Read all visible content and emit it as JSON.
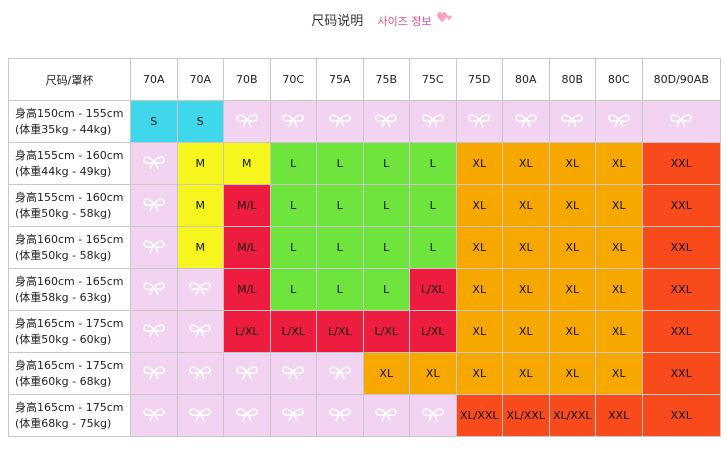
{
  "header": {
    "title": "尺码说明",
    "subtitle": "사이즈 정보"
  },
  "table": {
    "columns": [
      "尺码/罩杯",
      "70A",
      "70A",
      "70B",
      "70C",
      "75A",
      "75B",
      "75C",
      "75D",
      "80A",
      "80B",
      "80C",
      "80D/90AB"
    ],
    "rows": [
      {
        "height": "身高150cm - 155cm",
        "weight": "(体重35kg - 44kg)",
        "cells": [
          {
            "text": "S",
            "fill": "#3fd7ec"
          },
          {
            "text": "S",
            "fill": "#3fd7ec"
          },
          null,
          null,
          null,
          null,
          null,
          null,
          null,
          null,
          null,
          null
        ]
      },
      {
        "height": "身高155cm - 160cm",
        "weight": "(体重44kg - 49kg)",
        "cells": [
          null,
          {
            "text": "M",
            "fill": "#f7f51e"
          },
          {
            "text": "M",
            "fill": "#f7f51e"
          },
          {
            "text": "L",
            "fill": "#6ee43c"
          },
          {
            "text": "L",
            "fill": "#6ee43c"
          },
          {
            "text": "L",
            "fill": "#6ee43c"
          },
          {
            "text": "L",
            "fill": "#6ee43c"
          },
          {
            "text": "XL",
            "fill": "#f7a800"
          },
          {
            "text": "XL",
            "fill": "#f7a800"
          },
          {
            "text": "XL",
            "fill": "#f7a800"
          },
          {
            "text": "XL",
            "fill": "#f7a800"
          },
          {
            "text": "XXL",
            "fill": "#f94a1c"
          }
        ]
      },
      {
        "height": "身高155cm - 160cm",
        "weight": "(体重50kg - 58kg)",
        "cells": [
          null,
          {
            "text": "M",
            "fill": "#f7f51e"
          },
          {
            "text": "M/L",
            "fill": "#ee1c3f"
          },
          {
            "text": "L",
            "fill": "#6ee43c"
          },
          {
            "text": "L",
            "fill": "#6ee43c"
          },
          {
            "text": "L",
            "fill": "#6ee43c"
          },
          {
            "text": "L",
            "fill": "#6ee43c"
          },
          {
            "text": "XL",
            "fill": "#f7a800"
          },
          {
            "text": "XL",
            "fill": "#f7a800"
          },
          {
            "text": "XL",
            "fill": "#f7a800"
          },
          {
            "text": "XL",
            "fill": "#f7a800"
          },
          {
            "text": "XXL",
            "fill": "#f94a1c"
          }
        ]
      },
      {
        "height": "身高160cm - 165cm",
        "weight": "(体重50kg - 58kg)",
        "cells": [
          null,
          {
            "text": "M",
            "fill": "#f7f51e"
          },
          {
            "text": "M/L",
            "fill": "#ee1c3f"
          },
          {
            "text": "L",
            "fill": "#6ee43c"
          },
          {
            "text": "L",
            "fill": "#6ee43c"
          },
          {
            "text": "L",
            "fill": "#6ee43c"
          },
          {
            "text": "L",
            "fill": "#6ee43c"
          },
          {
            "text": "XL",
            "fill": "#f7a800"
          },
          {
            "text": "XL",
            "fill": "#f7a800"
          },
          {
            "text": "XL",
            "fill": "#f7a800"
          },
          {
            "text": "XL",
            "fill": "#f7a800"
          },
          {
            "text": "XXL",
            "fill": "#f94a1c"
          }
        ]
      },
      {
        "height": "身高160cm - 165cm",
        "weight": "(体重58kg - 63kg)",
        "cells": [
          null,
          null,
          {
            "text": "M/L",
            "fill": "#ee1c3f"
          },
          {
            "text": "L",
            "fill": "#6ee43c"
          },
          {
            "text": "L",
            "fill": "#6ee43c"
          },
          {
            "text": "L",
            "fill": "#6ee43c"
          },
          {
            "text": "L/XL",
            "fill": "#ee1c3f"
          },
          {
            "text": "XL",
            "fill": "#f7a800"
          },
          {
            "text": "XL",
            "fill": "#f7a800"
          },
          {
            "text": "XL",
            "fill": "#f7a800"
          },
          {
            "text": "XL",
            "fill": "#f7a800"
          },
          {
            "text": "XXL",
            "fill": "#f94a1c"
          }
        ]
      },
      {
        "height": "身高165cm - 175cm",
        "weight": "(体重50kg - 60kg)",
        "cells": [
          null,
          null,
          {
            "text": "L/XL",
            "fill": "#ee1c3f"
          },
          {
            "text": "L/XL",
            "fill": "#ee1c3f"
          },
          {
            "text": "L/XL",
            "fill": "#ee1c3f"
          },
          {
            "text": "L/XL",
            "fill": "#ee1c3f"
          },
          {
            "text": "L/XL",
            "fill": "#ee1c3f"
          },
          {
            "text": "XL",
            "fill": "#f7a800"
          },
          {
            "text": "XL",
            "fill": "#f7a800"
          },
          {
            "text": "XL",
            "fill": "#f7a800"
          },
          {
            "text": "XL",
            "fill": "#f7a800"
          },
          {
            "text": "XXL",
            "fill": "#f94a1c"
          }
        ]
      },
      {
        "height": "身高165cm - 175cm",
        "weight": "(体重60kg - 68kg)",
        "cells": [
          null,
          null,
          null,
          null,
          null,
          {
            "text": "XL",
            "fill": "#f7a800"
          },
          {
            "text": "XL",
            "fill": "#f7a800"
          },
          {
            "text": "XL",
            "fill": "#f7a800"
          },
          {
            "text": "XL",
            "fill": "#f7a800"
          },
          {
            "text": "XL",
            "fill": "#f7a800"
          },
          {
            "text": "XL",
            "fill": "#f7a800"
          },
          {
            "text": "XXL",
            "fill": "#f94a1c"
          }
        ]
      },
      {
        "height": "身高165cm - 175cm",
        "weight": "(体重68kg - 75kg)",
        "cells": [
          null,
          null,
          null,
          null,
          null,
          null,
          null,
          {
            "text": "XL/XXL",
            "fill": "#f94a1c"
          },
          {
            "text": "XL/XXL",
            "fill": "#f94a1c"
          },
          {
            "text": "XL/XXL",
            "fill": "#f94a1c"
          },
          {
            "text": "XXL",
            "fill": "#f94a1c"
          },
          {
            "text": "XXL",
            "fill": "#f94a1c"
          }
        ]
      }
    ]
  }
}
